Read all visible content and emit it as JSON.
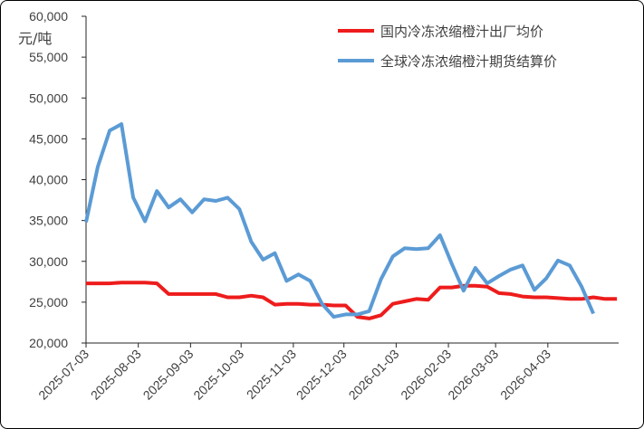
{
  "chart_data": {
    "type": "line",
    "unit_label": "元/吨",
    "ylim": [
      20000,
      60000
    ],
    "y_ticks": [
      "20,000",
      "25,000",
      "30,000",
      "35,000",
      "40,000",
      "45,000",
      "50,000",
      "55,000",
      "60,000"
    ],
    "y_tick_values": [
      20000,
      25000,
      30000,
      35000,
      40000,
      45000,
      50000,
      55000,
      60000
    ],
    "x_tick_labels": [
      "2025-07-03",
      "2025-08-03",
      "2025-09-03",
      "2025-10-03",
      "2025-11-03",
      "2025-12-03",
      "2026-01-03",
      "2026-02-03",
      "2026-03-03",
      "2026-04-03"
    ],
    "x_range": [
      "2025-07-03",
      "2026-05-15"
    ],
    "legend_position": "top-right",
    "grid": false,
    "series": [
      {
        "name": "国内冷冻浓缩橙汁出厂均价",
        "color": "#ee1c1c",
        "points": [
          [
            "2025-07-03",
            27300
          ],
          [
            "2025-07-10",
            27300
          ],
          [
            "2025-07-17",
            27300
          ],
          [
            "2025-07-24",
            27400
          ],
          [
            "2025-07-31",
            27400
          ],
          [
            "2025-08-07",
            27400
          ],
          [
            "2025-08-14",
            27300
          ],
          [
            "2025-08-21",
            26000
          ],
          [
            "2025-08-28",
            26000
          ],
          [
            "2025-09-04",
            26000
          ],
          [
            "2025-09-11",
            26000
          ],
          [
            "2025-09-18",
            26000
          ],
          [
            "2025-09-25",
            25600
          ],
          [
            "2025-10-02",
            25600
          ],
          [
            "2025-10-09",
            25800
          ],
          [
            "2025-10-16",
            25600
          ],
          [
            "2025-10-23",
            24700
          ],
          [
            "2025-10-30",
            24800
          ],
          [
            "2025-11-06",
            24800
          ],
          [
            "2025-11-13",
            24700
          ],
          [
            "2025-11-20",
            24700
          ],
          [
            "2025-11-27",
            24600
          ],
          [
            "2025-12-04",
            24600
          ],
          [
            "2025-12-11",
            23200
          ],
          [
            "2025-12-18",
            23000
          ],
          [
            "2025-12-25",
            23400
          ],
          [
            "2026-01-01",
            24800
          ],
          [
            "2026-01-08",
            25100
          ],
          [
            "2026-01-15",
            25400
          ],
          [
            "2026-01-22",
            25300
          ],
          [
            "2026-01-29",
            26800
          ],
          [
            "2026-02-05",
            26800
          ],
          [
            "2026-02-12",
            27000
          ],
          [
            "2026-02-19",
            27000
          ],
          [
            "2026-02-26",
            26900
          ],
          [
            "2026-03-05",
            26100
          ],
          [
            "2026-03-12",
            26000
          ],
          [
            "2026-03-19",
            25700
          ],
          [
            "2026-03-26",
            25600
          ],
          [
            "2026-04-02",
            25600
          ],
          [
            "2026-04-09",
            25500
          ],
          [
            "2026-04-16",
            25400
          ],
          [
            "2026-04-23",
            25400
          ],
          [
            "2026-04-30",
            25600
          ],
          [
            "2026-05-07",
            25400
          ],
          [
            "2026-05-14",
            25400
          ]
        ]
      },
      {
        "name": "全球冷冻浓缩橙汁期货结算价",
        "color": "#5b9bd5",
        "points": [
          [
            "2025-07-03",
            34800
          ],
          [
            "2025-07-10",
            41600
          ],
          [
            "2025-07-17",
            46000
          ],
          [
            "2025-07-24",
            46800
          ],
          [
            "2025-07-31",
            37800
          ],
          [
            "2025-08-07",
            34900
          ],
          [
            "2025-08-14",
            38600
          ],
          [
            "2025-08-21",
            36600
          ],
          [
            "2025-08-28",
            37600
          ],
          [
            "2025-09-04",
            36000
          ],
          [
            "2025-09-11",
            37600
          ],
          [
            "2025-09-18",
            37400
          ],
          [
            "2025-09-25",
            37800
          ],
          [
            "2025-10-02",
            36400
          ],
          [
            "2025-10-09",
            32400
          ],
          [
            "2025-10-16",
            30200
          ],
          [
            "2025-10-23",
            31000
          ],
          [
            "2025-10-30",
            27600
          ],
          [
            "2025-11-06",
            28400
          ],
          [
            "2025-11-13",
            27600
          ],
          [
            "2025-11-20",
            24800
          ],
          [
            "2025-11-27",
            23200
          ],
          [
            "2025-12-04",
            23500
          ],
          [
            "2025-12-11",
            23500
          ],
          [
            "2025-12-18",
            23900
          ],
          [
            "2025-12-25",
            27800
          ],
          [
            "2026-01-01",
            30600
          ],
          [
            "2026-01-08",
            31600
          ],
          [
            "2026-01-15",
            31500
          ],
          [
            "2026-01-22",
            31600
          ],
          [
            "2026-01-29",
            33200
          ],
          [
            "2026-02-05",
            29700
          ],
          [
            "2026-02-12",
            26400
          ],
          [
            "2026-02-19",
            29200
          ],
          [
            "2026-02-26",
            27300
          ],
          [
            "2026-03-05",
            28200
          ],
          [
            "2026-03-12",
            29000
          ],
          [
            "2026-03-19",
            29500
          ],
          [
            "2026-03-26",
            26500
          ],
          [
            "2026-04-02",
            27900
          ],
          [
            "2026-04-09",
            30100
          ],
          [
            "2026-04-16",
            29500
          ],
          [
            "2026-04-23",
            26900
          ],
          [
            "2026-04-30",
            23600
          ]
        ]
      }
    ]
  }
}
